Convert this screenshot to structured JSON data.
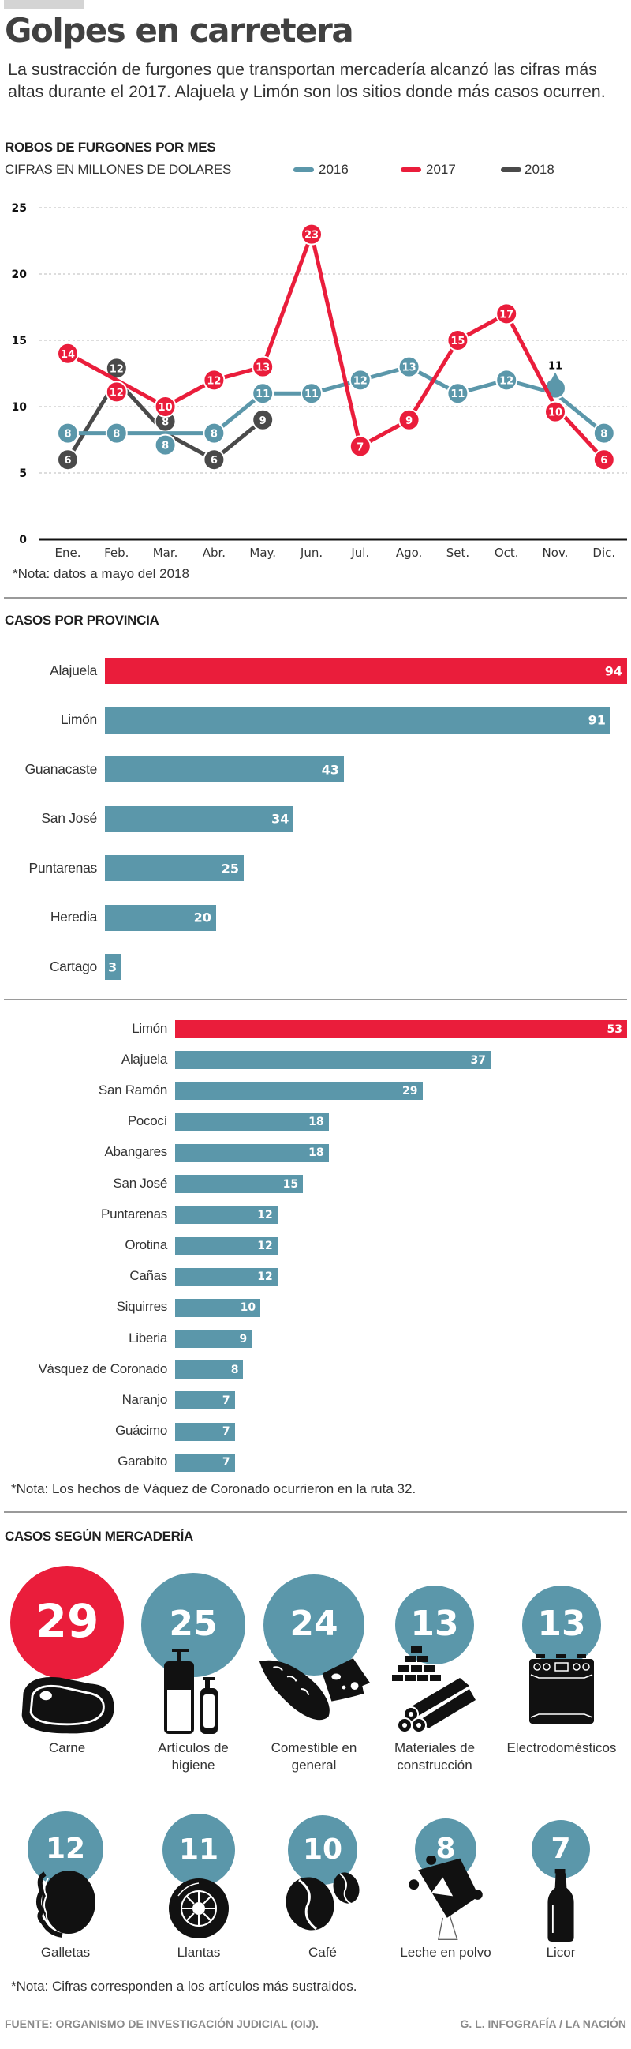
{
  "header": {
    "title": "Golpes en carretera",
    "intro": "La sustracción de furgones que transportan mercadería  alcanzó las cifras más altas durante el 2017. Alajuela y Limón son los sitios donde más casos ocurren."
  },
  "colors": {
    "teal": "#5b97aa",
    "red": "#ea1d3b",
    "gray": "#4a4a4a"
  },
  "chart_data": [
    {
      "type": "line",
      "title": "ROBOS DE FURGONES POR MES",
      "subtitle": "CIFRAS EN MILLONES DE DOLARES",
      "xlabel": "",
      "ylabel": "",
      "ylim": [
        0,
        25
      ],
      "yticks": [
        "0",
        "5",
        "10",
        "15",
        "20",
        "25"
      ],
      "grid": true,
      "legend_position": "top",
      "categories": [
        "Ene.",
        "Feb.",
        "Mar.",
        "Abr.",
        "May.",
        "Jun.",
        "Jul.",
        "Ago.",
        "Set.",
        "Oct.",
        "Nov.",
        "Dic."
      ],
      "series": [
        {
          "name": "2016",
          "color": "#5b97aa",
          "values": [
            8,
            8,
            8,
            8,
            11,
            11,
            12,
            13,
            11,
            12,
            11,
            8
          ]
        },
        {
          "name": "2017",
          "color": "#ea1d3b",
          "values": [
            14,
            12,
            10,
            12,
            13,
            23,
            7,
            9,
            15,
            17,
            10,
            6
          ]
        },
        {
          "name": "2018",
          "color": "#4a4a4a",
          "values": [
            6,
            12,
            8,
            6,
            9,
            null,
            null,
            null,
            null,
            null,
            null,
            null
          ]
        }
      ],
      "note": "*Nota: datos a mayo del 2018"
    },
    {
      "type": "bar",
      "title": "CASOS POR PROVINCIA",
      "categories": [
        "Alajuela",
        "Limón",
        "Guanacaste",
        "San José",
        "Puntarenas",
        "Heredia",
        "Cartago"
      ],
      "values": [
        94,
        91,
        43,
        34,
        25,
        20,
        3
      ],
      "highlight": [
        true,
        false,
        false,
        false,
        false,
        false,
        false
      ],
      "xlim": [
        0,
        94
      ]
    },
    {
      "type": "bar",
      "title": "",
      "categories": [
        "Limón",
        "Alajuela",
        "San Ramón",
        "Pococí",
        "Abangares",
        "San José",
        "Puntarenas",
        "Orotina",
        "Cañas",
        "Siquirres",
        "Liberia",
        "Vásquez de Coronado",
        "Naranjo",
        "Guácimo",
        "Garabito"
      ],
      "values": [
        53,
        37,
        29,
        18,
        18,
        15,
        12,
        12,
        12,
        10,
        9,
        8,
        7,
        7,
        7
      ],
      "highlight": [
        true,
        false,
        false,
        false,
        false,
        false,
        false,
        false,
        false,
        false,
        false,
        false,
        false,
        false,
        false
      ],
      "xlim": [
        0,
        53
      ],
      "note": "*Nota: Los hechos de Váquez de Coronado ocurrieron en la ruta 32."
    },
    {
      "type": "bubble",
      "title": "CASOS SEGÚN MERCADERÍA",
      "items": [
        {
          "label": "Carne",
          "value": 29,
          "icon": "steak-icon",
          "highlight": true
        },
        {
          "label": "Artículos de higiene",
          "value": 25,
          "icon": "soap-bottles-icon",
          "highlight": false
        },
        {
          "label": "Comestible en general",
          "value": 24,
          "icon": "bread-cheese-icon",
          "highlight": false
        },
        {
          "label": "Materiales de construcción",
          "value": 13,
          "icon": "bricks-pipes-icon",
          "highlight": false
        },
        {
          "label": "Electrodomésticos",
          "value": 13,
          "icon": "stove-icon",
          "highlight": false
        },
        {
          "label": "Galletas",
          "value": 12,
          "icon": "cookie-icon",
          "highlight": false
        },
        {
          "label": "Llantas",
          "value": 11,
          "icon": "tire-icon",
          "highlight": false
        },
        {
          "label": "Café",
          "value": 10,
          "icon": "coffee-beans-icon",
          "highlight": false
        },
        {
          "label": "Leche en polvo",
          "value": 8,
          "icon": "powder-bag-icon",
          "highlight": false
        },
        {
          "label": "Licor",
          "value": 7,
          "icon": "bottle-icon",
          "highlight": false
        }
      ],
      "note": "*Nota: Cifras corresponden a los artículos más sustraidos."
    }
  ],
  "footer": {
    "source": "FUENTE: ORGANISMO DE INVESTIGACIÓN JUDICIAL (OIJ).",
    "credit": "G. L. INFOGRAFÍA / LA NACIÓN"
  }
}
